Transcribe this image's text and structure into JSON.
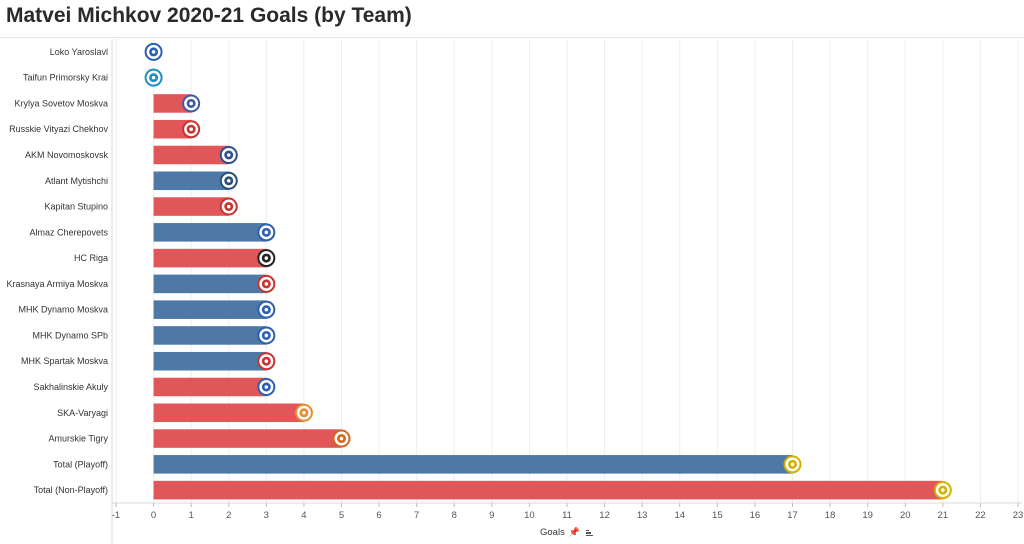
{
  "title": "Matvei Michkov 2020-21 Goals (by Team)",
  "chart_data": {
    "type": "bar",
    "orientation": "horizontal",
    "title": "Matvei Michkov 2020-21 Goals (by Team)",
    "xlabel": "Goals",
    "xlim": [
      -1,
      23
    ],
    "x_ticks": [
      -1,
      0,
      1,
      2,
      3,
      4,
      5,
      6,
      7,
      8,
      9,
      10,
      11,
      12,
      13,
      14,
      15,
      16,
      17,
      18,
      19,
      20,
      21,
      22,
      23
    ],
    "grid": true,
    "categories": [
      "Loko Yaroslavl",
      "Taifun Primorsky Krai",
      "Krylya Sovetov Moskva",
      "Russkie Vityazi Chekhov",
      "AKM Novomoskovsk",
      "Atlant Mytishchi",
      "Kapitan Stupino",
      "Almaz Cherepovets",
      "HC Riga",
      "Krasnaya Armiya Moskva",
      "MHK Dynamo Moskva",
      "MHK Dynamo SPb",
      "MHK Spartak Moskva",
      "Sakhalinskie Akuly",
      "SKA-Varyagi",
      "Amurskie Tigry",
      "Total (Playoff)",
      "Total (Non-Playoff)"
    ],
    "values": [
      0,
      0,
      1,
      1,
      2,
      2,
      2,
      3,
      3,
      3,
      3,
      3,
      3,
      3,
      4,
      5,
      17,
      21
    ],
    "bar_colors": [
      "#e15759",
      "#4e79a7",
      "#e15759",
      "#e15759",
      "#e15759",
      "#4e79a7",
      "#e15759",
      "#4e79a7",
      "#e15759",
      "#4e79a7",
      "#4e79a7",
      "#4e79a7",
      "#4e79a7",
      "#e15759",
      "#e15759",
      "#e15759",
      "#4e79a7",
      "#e15759"
    ],
    "logo_colors": [
      "#2b5fb0",
      "#1f8fbf",
      "#3a5aa8",
      "#c8342f",
      "#2e4f8f",
      "#2b4f7a",
      "#c8342f",
      "#2b5fb0",
      "#222222",
      "#c8342f",
      "#2b5fb0",
      "#2b5fb0",
      "#c8342f",
      "#2b5fb0",
      "#e88b2a",
      "#d2691e",
      "#d4b000",
      "#d4b000"
    ]
  }
}
